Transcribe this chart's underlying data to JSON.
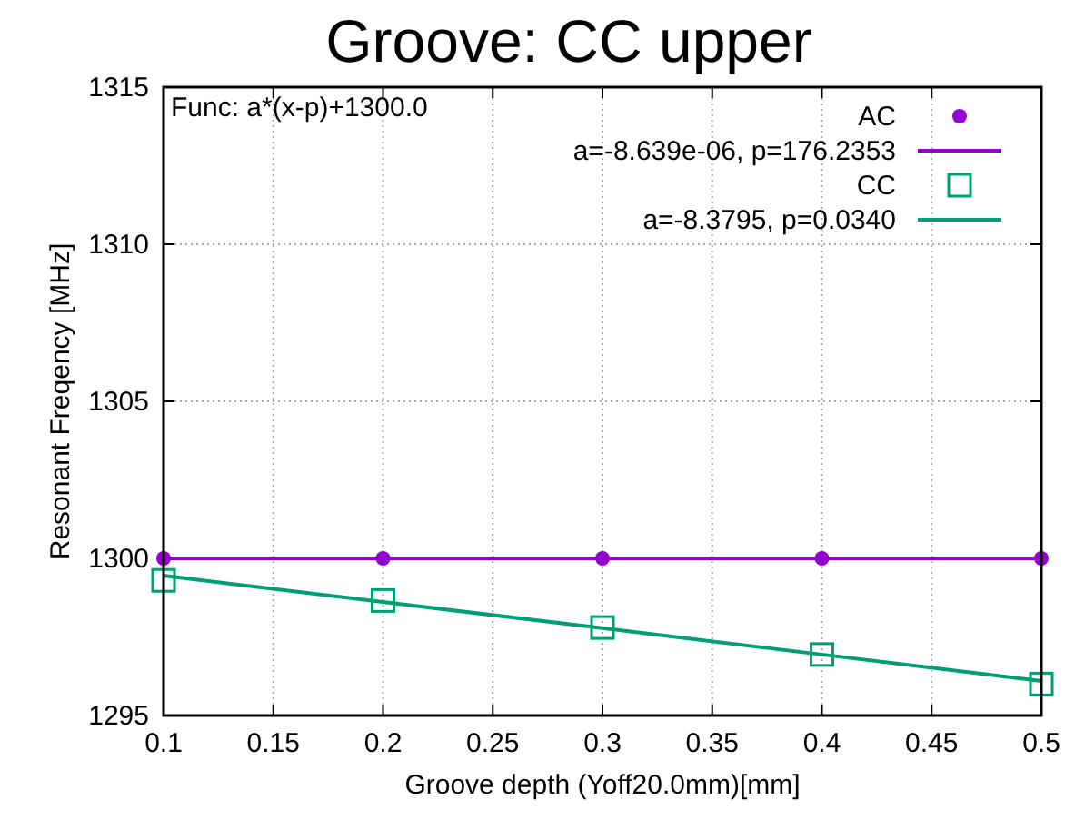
{
  "chart_data": {
    "type": "scatter",
    "title": "Groove: CC upper",
    "xlabel": "Groove depth (Yoff20.0mm)[mm]",
    "ylabel": "Resonant Freqency [MHz]",
    "annotations": [
      "Func: a*(x-p)+1300.0"
    ],
    "x": [
      0.1,
      0.2,
      0.3,
      0.4,
      0.5
    ],
    "series": [
      {
        "name": "AC",
        "marker": "circle",
        "color": "#9400d3",
        "values": [
          1300,
          1300,
          1300,
          1300,
          1300
        ]
      },
      {
        "name": "a=-8.639e-06, p=176.2353",
        "type": "line",
        "marker": "none",
        "color": "#9400d3",
        "values": [
          1300,
          1300,
          1300,
          1300,
          1300
        ]
      },
      {
        "name": "CC",
        "marker": "square",
        "color": "#009e73",
        "values": [
          1299.3,
          1298.66,
          1297.8,
          1296.94,
          1296.0
        ]
      },
      {
        "name": "a=-8.3795, p=0.0340",
        "type": "line",
        "marker": "none",
        "color": "#009e73",
        "values": [
          1299.45,
          1298.61,
          1297.78,
          1296.94,
          1296.1
        ]
      }
    ],
    "xlim": [
      0.1,
      0.5
    ],
    "xticks": [
      0.1,
      0.15,
      0.2,
      0.25,
      0.3,
      0.35,
      0.4,
      0.45,
      0.5
    ],
    "ylim": [
      1295,
      1315
    ],
    "yticks": [
      1295,
      1300,
      1305,
      1310,
      1315
    ],
    "grid": true,
    "legend": "top right"
  }
}
